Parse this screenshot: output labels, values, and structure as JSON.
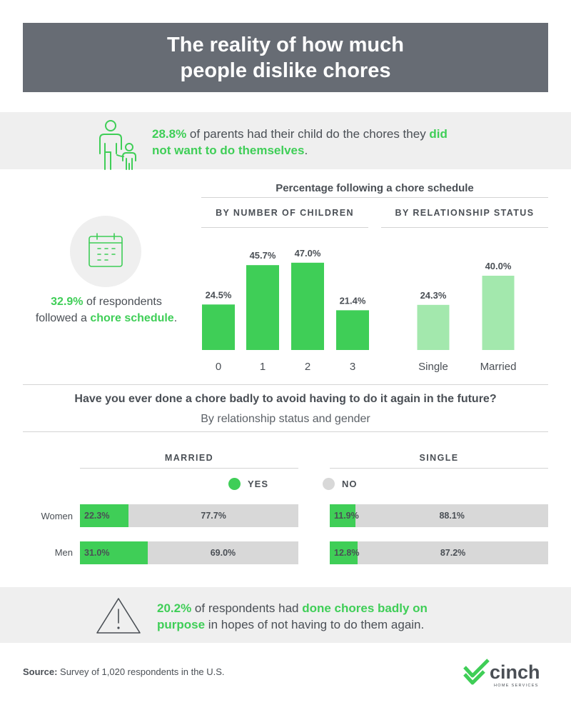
{
  "title": "The reality of how much people dislike chores",
  "parents": {
    "stat": "28.8%",
    "text_a": " of parents had their child do the chores they ",
    "highlight": "did not want to do themselves",
    "text_b": "."
  },
  "schedule": {
    "stat": "32.9%",
    "text_a": " of respondents followed a ",
    "highlight": "chore schedule",
    "text_b": "."
  },
  "bad_question": "Have you ever done a chore badly to avoid having to do it again in the future?",
  "bad_subtitle": "By relationship status and gender",
  "warning": {
    "stat": "20.2%",
    "text_a": " of respondents had ",
    "highlight": "done chores badly on purpose",
    "text_b": " in hopes of not having to do them again."
  },
  "source": {
    "label": "Source:",
    "text": " Survey of 1,020 respondents in the U.S."
  },
  "logo": {
    "name": "cinch",
    "tagline": "HOME SERVICES"
  },
  "colors": {
    "title_bg": "#676c74",
    "green": "#3fce57",
    "light_green": "#a3e8ad",
    "gray_bar": "#d8d8d8",
    "band": "#efefef"
  },
  "icons": [
    "parent-child-icon",
    "calendar-icon",
    "warning-triangle-icon",
    "cinch-logo-icon"
  ],
  "chart_data": [
    {
      "type": "bar",
      "title": "Percentage following a chore schedule",
      "subtitle": "BY NUMBER OF CHILDREN",
      "categories": [
        "0",
        "1",
        "2",
        "3"
      ],
      "values": [
        24.5,
        45.7,
        47.0,
        21.4
      ],
      "labels": [
        "24.5%",
        "45.7%",
        "47.0%",
        "21.4%"
      ],
      "color": "#3fce57"
    },
    {
      "type": "bar",
      "subtitle": "BY RELATIONSHIP STATUS",
      "categories": [
        "Single",
        "Married"
      ],
      "values": [
        24.3,
        40.0
      ],
      "labels": [
        "24.3%",
        "40.0%"
      ],
      "color": "#a3e8ad"
    },
    {
      "type": "bar",
      "orientation": "horizontal-stacked",
      "panels": [
        {
          "name": "MARRIED",
          "rows": [
            {
              "label": "Women",
              "yes": 22.3,
              "no": 77.7,
              "yes_label": "22.3%",
              "no_label": "77.7%"
            },
            {
              "label": "Men",
              "yes": 31.0,
              "no": 69.0,
              "yes_label": "31.0%",
              "no_label": "69.0%"
            }
          ]
        },
        {
          "name": "SINGLE",
          "rows": [
            {
              "label": "Women",
              "yes": 11.9,
              "no": 88.1,
              "yes_label": "11.9%",
              "no_label": "88.1%"
            },
            {
              "label": "Men",
              "yes": 12.8,
              "no": 87.2,
              "yes_label": "12.8%",
              "no_label": "87.2%"
            }
          ]
        }
      ],
      "legend": [
        {
          "label": "YES",
          "color": "#3fce57"
        },
        {
          "label": "NO",
          "color": "#d8d8d8"
        }
      ]
    }
  ]
}
